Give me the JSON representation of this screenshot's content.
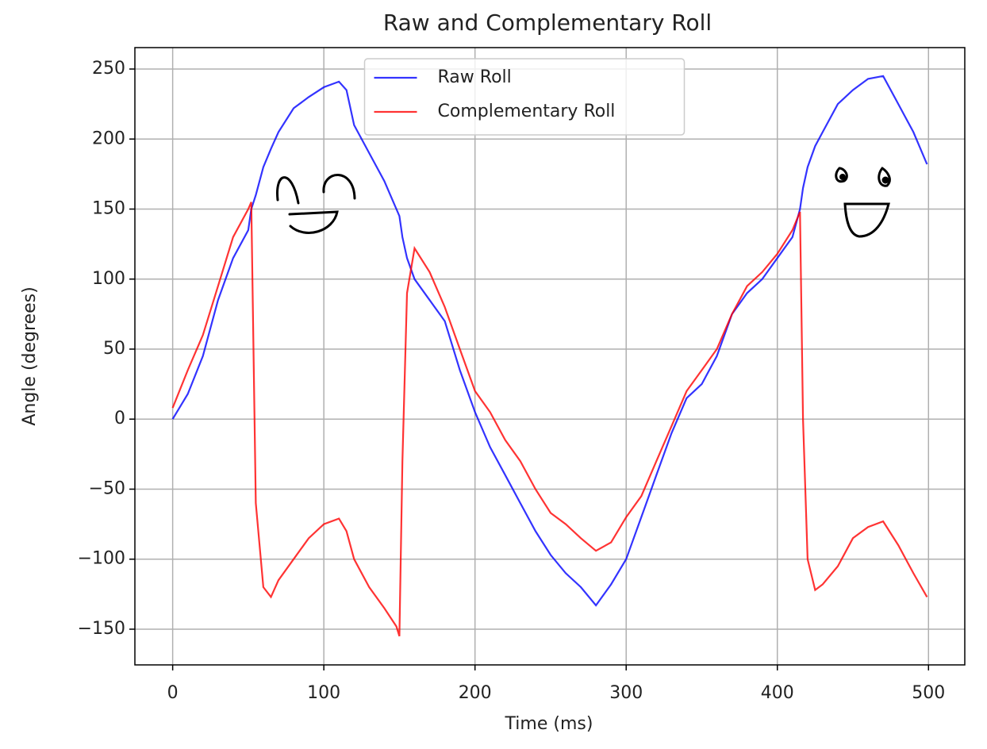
{
  "chart_data": {
    "type": "line",
    "title": "Raw and Complementary Roll",
    "xlabel": "Time (ms)",
    "ylabel": "Angle (degrees)",
    "x": [
      0,
      10,
      20,
      30,
      40,
      50,
      52,
      55,
      60,
      65,
      70,
      80,
      90,
      100,
      110,
      115,
      120,
      130,
      140,
      148,
      150,
      152,
      155,
      160,
      170,
      180,
      190,
      200,
      210,
      220,
      230,
      240,
      250,
      260,
      270,
      280,
      290,
      300,
      310,
      320,
      330,
      340,
      350,
      360,
      370,
      380,
      390,
      400,
      410,
      415,
      417,
      420,
      425,
      430,
      440,
      450,
      460,
      470,
      480,
      490,
      499
    ],
    "series": [
      {
        "name": "Raw Roll",
        "color": "#0000ff",
        "values": [
          0,
          18,
          45,
          85,
          115,
          135,
          150,
          160,
          180,
          193,
          205,
          222,
          230,
          237,
          241,
          235,
          210,
          190,
          170,
          150,
          145,
          130,
          115,
          100,
          85,
          70,
          35,
          5,
          -20,
          -40,
          -60,
          -80,
          -97,
          -110,
          -120,
          -133,
          -118,
          -100,
          -70,
          -40,
          -10,
          15,
          25,
          45,
          75,
          90,
          100,
          115,
          130,
          150,
          165,
          180,
          195,
          205,
          225,
          235,
          243,
          245,
          225,
          205,
          182
        ]
      },
      {
        "name": "Complementary Roll",
        "color": "#ff0000",
        "values": [
          8,
          35,
          60,
          95,
          130,
          150,
          155,
          -60,
          -120,
          -127,
          -115,
          -100,
          -85,
          -75,
          -71,
          -80,
          -100,
          -120,
          -135,
          -148,
          -155,
          -30,
          90,
          122,
          105,
          80,
          50,
          20,
          5,
          -15,
          -30,
          -50,
          -67,
          -75,
          -85,
          -94,
          -88,
          -70,
          -55,
          -30,
          -5,
          20,
          35,
          50,
          75,
          95,
          105,
          118,
          135,
          148,
          0,
          -100,
          -122,
          -118,
          -105,
          -85,
          -77,
          -73,
          -90,
          -110,
          -127
        ]
      }
    ],
    "xlim": [
      -25,
      524
    ],
    "ylim": [
      -175.5,
      265.3
    ],
    "xticks": [
      0,
      100,
      200,
      300,
      400,
      500
    ],
    "yticks": [
      {
        "value": -150,
        "label": "−150"
      },
      {
        "value": -100,
        "label": "−100"
      },
      {
        "value": -50,
        "label": "−50"
      },
      0,
      50,
      100,
      150,
      200,
      250
    ],
    "grid": true,
    "legend": "upper center"
  }
}
